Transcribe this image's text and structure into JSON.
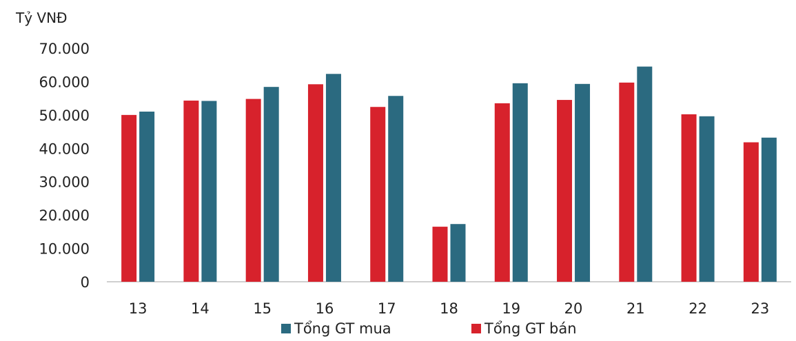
{
  "chart_data": {
    "type": "bar",
    "unit_label": "Tỷ VNĐ",
    "categories": [
      "13",
      "14",
      "15",
      "16",
      "17",
      "18",
      "19",
      "20",
      "21",
      "22",
      "23"
    ],
    "series": [
      {
        "name": "Tổng GT bán",
        "color": "#d7222c",
        "values": [
          50000,
          54300,
          54800,
          59200,
          52400,
          16500,
          53500,
          54500,
          59700,
          50200,
          41800
        ]
      },
      {
        "name": "Tổng GT mua",
        "color": "#2b6a80",
        "values": [
          51000,
          54200,
          58400,
          62300,
          55700,
          17300,
          59500,
          59300,
          64500,
          49600,
          43200
        ]
      }
    ],
    "ylim": [
      0,
      70000
    ],
    "yticks": [
      0,
      10000,
      20000,
      30000,
      40000,
      50000,
      60000,
      70000
    ],
    "ytick_labels": [
      "0",
      "10.000",
      "20.000",
      "30.000",
      "40.000",
      "50.000",
      "60.000",
      "70.000"
    ],
    "grid": false,
    "legend": {
      "placement": "bottom",
      "items": [
        {
          "label": "Tổng GT mua",
          "color": "#2b6a80"
        },
        {
          "label": "Tổng GT bán",
          "color": "#d7222c"
        }
      ]
    }
  }
}
